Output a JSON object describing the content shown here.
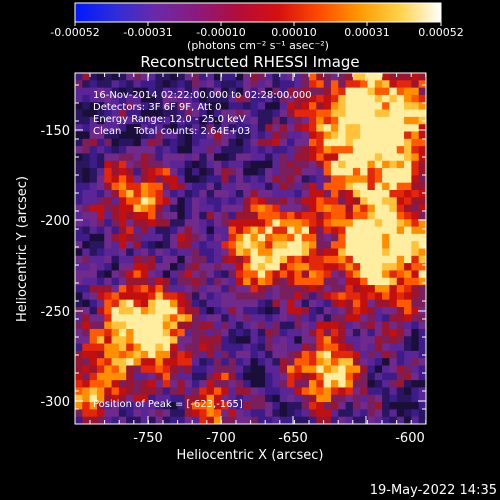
{
  "colorbar": {
    "tick_labels": [
      "-0.00052",
      "-0.00031",
      "-0.00010",
      "0.00010",
      "0.00031",
      "0.00052"
    ],
    "units": "(photons cm⁻² s⁻¹ asec⁻²)"
  },
  "title": "Reconstructed RHESSI Image",
  "overlay": {
    "time_range": "16-Nov-2014 02:22:00.000 to 02:28:00.000",
    "detectors": "Detectors: 3F 6F 9F, Att 0",
    "energy_range": "Energy Range: 12.0 - 25.0 keV",
    "clean_counts": "Clean    Total counts: 2.64E+03",
    "peak_position": "Position of Peak = [-623,-165]"
  },
  "axes": {
    "x_label": "Heliocentric X (arcsec)",
    "y_label": "Heliocentric Y (arcsec)",
    "x_ticks": [
      "-750",
      "-700",
      "-650",
      "-600"
    ],
    "y_ticks": [
      "-150",
      "-200",
      "-250",
      "-300"
    ]
  },
  "footer": {
    "timestamp": "19-May-2022 14:35"
  },
  "colors": {
    "background": "#000000",
    "colorbar_stops": [
      "#0018ff",
      "#2f2dd8",
      "#6a2aa8",
      "#8c1a7b",
      "#b10d3c",
      "#d80f0f",
      "#ff4a00",
      "#ff9a00",
      "#ffd34a",
      "#ffffff"
    ]
  }
}
